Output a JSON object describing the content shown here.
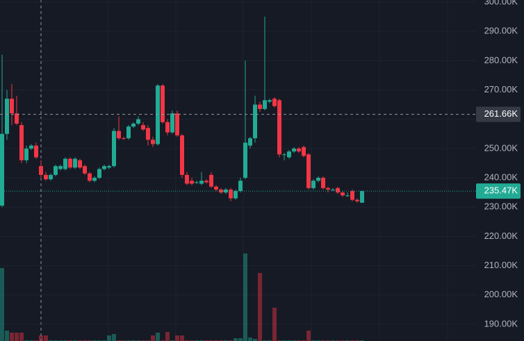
{
  "chart_data": {
    "type": "candlestick",
    "open": [
      230500,
      255000,
      267000,
      262000,
      258000,
      246000,
      250000,
      251000,
      244000,
      241000,
      239500,
      241000,
      243000,
      243000,
      246500,
      243500,
      246000,
      244000,
      241500,
      239000,
      240000,
      243000,
      243500,
      244000,
      256000,
      253500,
      253500,
      257500,
      258500,
      258000,
      257000,
      253000,
      251500,
      271500,
      259000,
      255500,
      262000,
      254500,
      241000,
      239000,
      238500,
      238000,
      239000,
      241000,
      237000,
      236000,
      235000,
      236000,
      233000,
      235500,
      240000,
      251000,
      253500,
      265000,
      263500,
      266000,
      267000,
      266500,
      248000,
      247000,
      249000,
      250000,
      250500,
      248000,
      236500,
      239000,
      240000,
      236500,
      236000,
      236500,
      235000,
      234000,
      235500,
      232500,
      231500
    ],
    "high": [
      282000,
      270000,
      272000,
      268000,
      259000,
      251000,
      251500,
      252000,
      246000,
      242000,
      241500,
      244500,
      244500,
      247000,
      247000,
      247000,
      246500,
      244500,
      242000,
      240500,
      243500,
      244500,
      244500,
      257000,
      261000,
      254000,
      258000,
      259000,
      261000,
      259000,
      258000,
      254000,
      272000,
      272000,
      260000,
      263000,
      263000,
      255000,
      242000,
      240000,
      239000,
      242000,
      239500,
      242000,
      237500,
      236500,
      236500,
      236500,
      236000,
      240000,
      280000,
      254000,
      268000,
      266000,
      295000,
      267000,
      267500,
      267000,
      248500,
      249500,
      250500,
      250500,
      251000,
      248500,
      239500,
      240500,
      240500,
      237000,
      236500,
      237000,
      235500,
      235000,
      236000,
      233000,
      235600
    ],
    "low": [
      230000,
      253000,
      258000,
      258000,
      245000,
      245000,
      249500,
      246500,
      240000,
      239000,
      239000,
      240500,
      242500,
      242500,
      243000,
      243000,
      243000,
      241000,
      238500,
      238500,
      239500,
      242500,
      243000,
      243500,
      253000,
      253000,
      253000,
      257000,
      258000,
      256000,
      251000,
      250500,
      251000,
      258500,
      254500,
      255000,
      254000,
      240000,
      237500,
      237500,
      238000,
      237500,
      238000,
      236500,
      235500,
      234500,
      234500,
      232000,
      232500,
      235000,
      239500,
      250000,
      252000,
      262500,
      263000,
      265500,
      264000,
      247000,
      246000,
      246500,
      248500,
      248500,
      247000,
      236000,
      236000,
      238500,
      236000,
      235000,
      235500,
      234500,
      233500,
      233500,
      232000,
      231500,
      231500
    ],
    "close": [
      255000,
      267000,
      262000,
      258500,
      246000,
      250000,
      251000,
      247000,
      241000,
      239500,
      241000,
      244000,
      244000,
      246500,
      243500,
      246500,
      243500,
      241500,
      239000,
      240000,
      243000,
      244000,
      244000,
      256000,
      253500,
      253300,
      257500,
      258500,
      260000,
      256500,
      253000,
      251500,
      271500,
      259000,
      255500,
      262000,
      254500,
      241000,
      238000,
      238000,
      238500,
      239000,
      238500,
      237000,
      236000,
      235000,
      236000,
      233000,
      235500,
      239000,
      252000,
      253500,
      265000,
      263500,
      266500,
      266500,
      264500,
      248000,
      248000,
      249000,
      250000,
      249000,
      247500,
      236500,
      239000,
      240000,
      236500,
      236000,
      236000,
      235000,
      234000,
      234000,
      232500,
      232000,
      235470
    ],
    "volume": [
      105,
      15,
      12,
      12,
      12,
      1,
      1,
      1,
      8,
      8,
      1,
      1,
      1,
      1,
      1,
      1,
      1,
      1,
      1,
      1,
      1,
      1,
      8,
      10,
      1,
      1,
      1,
      1,
      1,
      1,
      1,
      8,
      12,
      1,
      13,
      1,
      8,
      8,
      1,
      1,
      1,
      1,
      1,
      1,
      1,
      1,
      1,
      1,
      4,
      4,
      126,
      5,
      3,
      98,
      1,
      1,
      48,
      1,
      1,
      1,
      1,
      1,
      1,
      15,
      1,
      1,
      1,
      1,
      1,
      1,
      1,
      1,
      1,
      1,
      1
    ],
    "up_color": "#22ab94",
    "down_color": "#f23645",
    "ylim": [
      184300,
      300700
    ],
    "yticks": [
      {
        "value": 190000,
        "label": "190.00K"
      },
      {
        "value": 200000,
        "label": "200.00K"
      },
      {
        "value": 210000,
        "label": "210.00K"
      },
      {
        "value": 220000,
        "label": "220.00K"
      },
      {
        "value": 230000,
        "label": "230.00K"
      },
      {
        "value": 240000,
        "label": "240.00K"
      },
      {
        "value": 250000,
        "label": "250.00K"
      },
      {
        "value": 260000,
        "label": "260.00K"
      },
      {
        "value": 270000,
        "label": "270.00K"
      },
      {
        "value": 280000,
        "label": "280.00K"
      },
      {
        "value": 290000,
        "label": "290.00K"
      },
      {
        "value": 300000,
        "label": "300.00K"
      }
    ],
    "grid": true,
    "crosshair": {
      "value": 261660,
      "label": "261.66K"
    },
    "last_price": {
      "value": 235470,
      "label": "235.47K"
    }
  }
}
